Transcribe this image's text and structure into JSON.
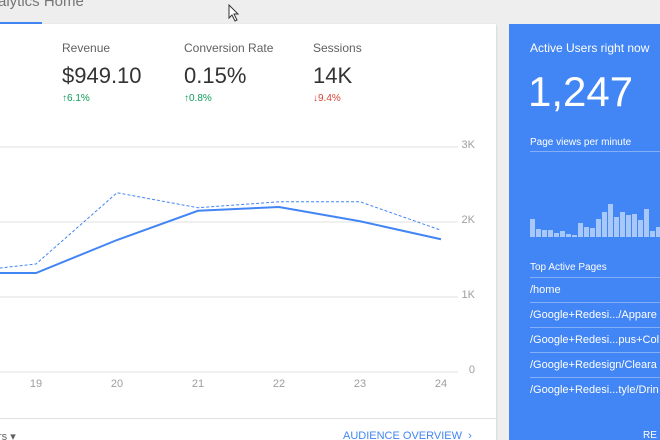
{
  "header": {
    "title": "alytics Home"
  },
  "metrics": [
    {
      "label": "Revenue",
      "value": "$949.10",
      "change": "6.1%",
      "direction": "up"
    },
    {
      "label": "Conversion Rate",
      "value": "0.15%",
      "change": "0.8%",
      "direction": "up"
    },
    {
      "label": "Sessions",
      "value": "14K",
      "change": "9.4%",
      "direction": "down"
    }
  ],
  "chart_data": {
    "type": "line",
    "categories": [
      null,
      "19",
      "20",
      "21",
      "22",
      "23",
      "24"
    ],
    "series": [
      {
        "color": "#4285f4",
        "style": "solid",
        "values": [
          1320,
          1320,
          1760,
          2150,
          2200,
          2010,
          1770
        ]
      },
      {
        "color": "#4285f4",
        "style": "dashed",
        "values": [
          1320,
          1440,
          2390,
          2190,
          2270,
          2270,
          1890
        ]
      }
    ],
    "ylim": [
      0,
      3000
    ],
    "yticks": [
      0,
      {
        "value": 1000,
        "label": "1K"
      },
      {
        "value": 2000,
        "label": "2K"
      },
      {
        "value": 3000,
        "label": "3K"
      }
    ],
    "grid": true
  },
  "footer": {
    "date_range": "rs",
    "link": "AUDIENCE OVERVIEW"
  },
  "realtime": {
    "title": "Active Users right now",
    "active_users": "1,247",
    "pageviews_label": "Page views per minute",
    "pageviews": {
      "type": "bar",
      "color": "rgba(255,255,255,0.55)",
      "ylim": [
        0,
        40
      ],
      "values": [
        18,
        8,
        7,
        7,
        4,
        6,
        3,
        2,
        14,
        10,
        9,
        18,
        25,
        33,
        20,
        25,
        22,
        23,
        17,
        28,
        6,
        10
      ]
    },
    "top_pages_label": "Top Active Pages",
    "top_pages": [
      "/home",
      "/Google+Redesi.../Appare",
      "/Google+Redesi...pus+Col",
      "/Google+Redesign/Cleara",
      "/Google+Redesi...tyle/Drin"
    ],
    "link": "RE"
  }
}
